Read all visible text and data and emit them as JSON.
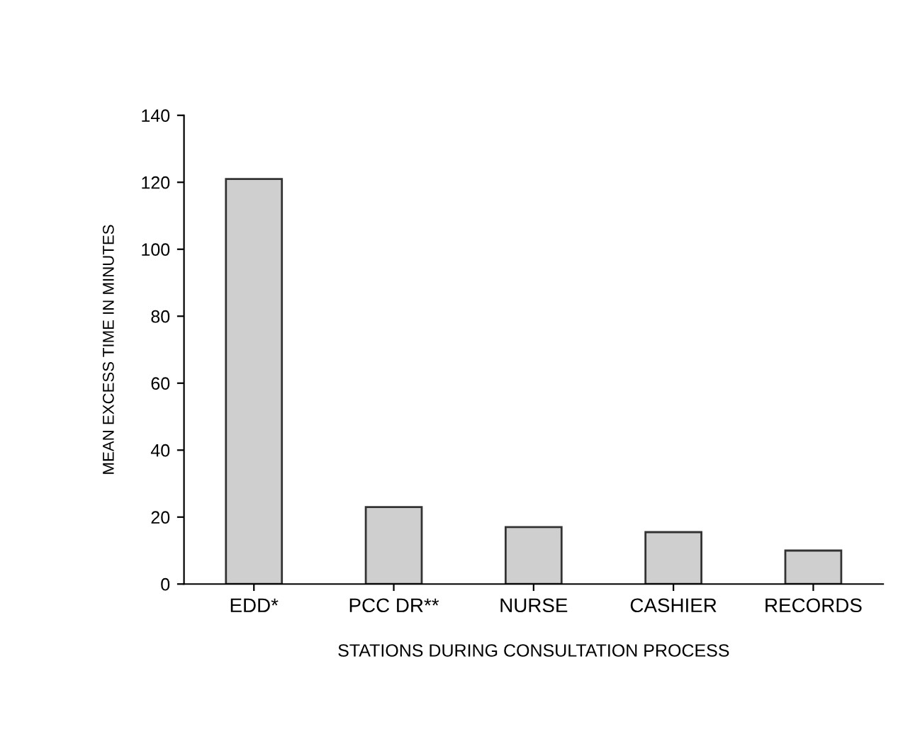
{
  "chart_data": {
    "type": "bar",
    "xlabel": "STATIONS DURING CONSULTATION PROCESS",
    "ylabel": "MEAN EXCESS TIME IN MINUTES",
    "categories": [
      "EDD*",
      "PCC DR**",
      "NURSE",
      "CASHIER",
      "RECORDS"
    ],
    "values": [
      121,
      23,
      17,
      15.5,
      10
    ],
    "color": "#cfcfcf",
    "ylim": [
      0,
      140
    ],
    "yticks": [
      0,
      20,
      40,
      60,
      80,
      100,
      120,
      140
    ],
    "grid": false
  }
}
